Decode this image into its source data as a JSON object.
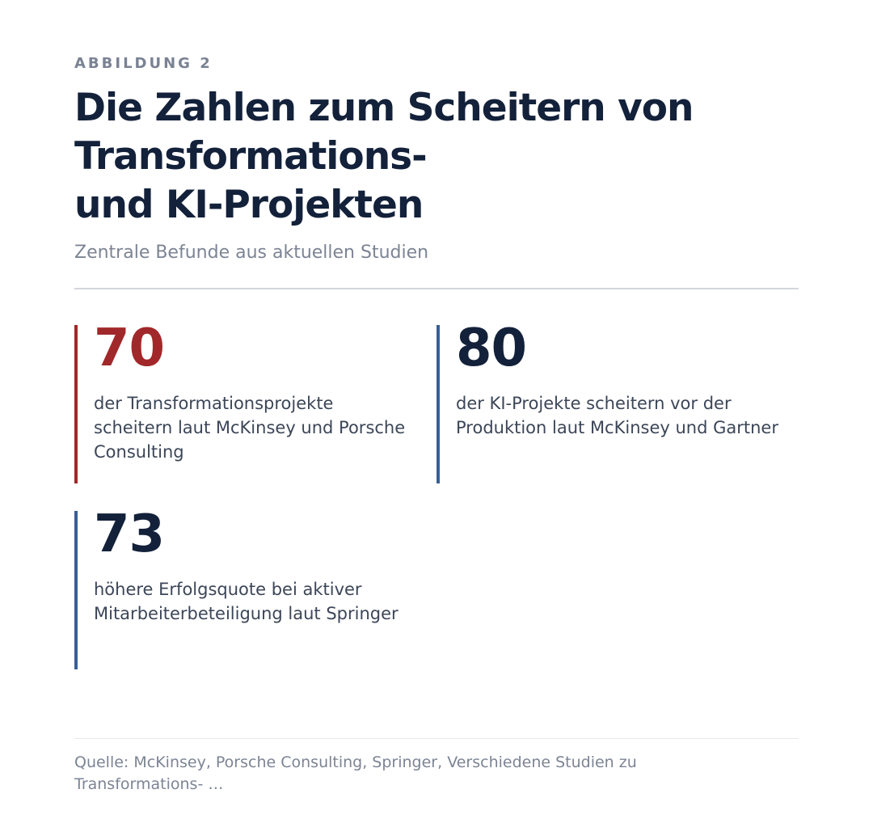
{
  "figure": {
    "label": "ABBILDUNG 2",
    "title_lines": [
      "Die Zahlen zum Scheitern von",
      "Transformations-",
      "und KI-Projekten"
    ],
    "subtitle": "Zentrale Befunde aus aktuellen Studien"
  },
  "stats": [
    {
      "value": "70",
      "description": "der Transformationsprojekte scheitern laut McKinsey und Porsche Consulting",
      "accent_color": "#a1282a"
    },
    {
      "value": "80",
      "description": "der KI-Projekte scheitern vor der Produktion laut McKinsey und Gartner",
      "accent_color": "#3a5e97"
    },
    {
      "value": "73",
      "description": "höhere Erfolgsquote bei aktiver Mitarbeiterbeteiligung laut Springer",
      "accent_color": "#3a5e97"
    }
  ],
  "source": "Quelle: McKinsey, Porsche Consulting, Springer, Verschiedene Studien zu Transformations- …",
  "colors": {
    "title": "#13213a",
    "muted": "#7c8494",
    "body_text": "#3c4658",
    "divider": "#d3d6db"
  }
}
